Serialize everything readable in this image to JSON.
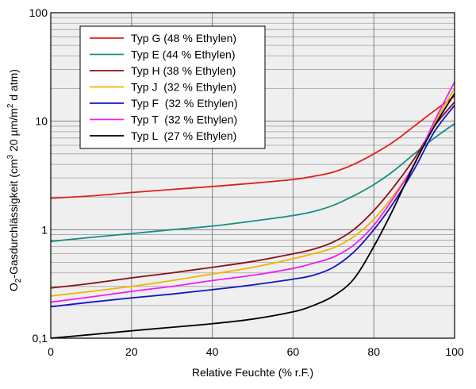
{
  "chart_data": {
    "type": "line",
    "title": "",
    "xlabel": "Relative Feuchte (% r.F.)",
    "ylabel": {
      "part1": "O",
      "sub1": "2",
      "part2": "-Gasdurchlässigkeit (cm",
      "sup1": "3",
      "part3": " 20 µm/m",
      "sup2": "2",
      "part4": " d atm)"
    },
    "xlim": [
      0,
      100
    ],
    "ylim": [
      0.1,
      100
    ],
    "yscale": "log",
    "grid": true,
    "legend_position": "top-left",
    "x_ticks": [
      "0",
      "20",
      "40",
      "60",
      "80",
      "100"
    ],
    "y_ticks": [
      "0,1",
      "1",
      "10",
      "100"
    ],
    "plot_background": "#efefef",
    "series": [
      {
        "name": "Typ G (48 % Ethylen)",
        "color": "#e0201e",
        "x": [
          0,
          10,
          20,
          30,
          40,
          50,
          60,
          65,
          70,
          75,
          80,
          85,
          90,
          95,
          100
        ],
        "y": [
          1.95,
          2.05,
          2.2,
          2.35,
          2.5,
          2.68,
          2.9,
          3.1,
          3.4,
          4.0,
          5.0,
          6.5,
          9.0,
          12.5,
          17.0
        ]
      },
      {
        "name": "Typ E (44 % Ethylen)",
        "color": "#149080",
        "x": [
          0,
          10,
          20,
          30,
          40,
          50,
          60,
          65,
          70,
          75,
          80,
          85,
          90,
          95,
          100
        ],
        "y": [
          0.78,
          0.85,
          0.92,
          1.0,
          1.08,
          1.2,
          1.35,
          1.47,
          1.68,
          2.05,
          2.6,
          3.5,
          5.0,
          7.0,
          9.5
        ]
      },
      {
        "name": "Typ H (38 % Ethylen)",
        "color": "#8b0f18",
        "x": [
          0,
          10,
          20,
          30,
          40,
          50,
          60,
          65,
          70,
          75,
          80,
          85,
          90,
          95,
          100
        ],
        "y": [
          0.29,
          0.32,
          0.36,
          0.4,
          0.45,
          0.51,
          0.6,
          0.66,
          0.77,
          1.0,
          1.5,
          2.5,
          4.5,
          9.0,
          15.0
        ]
      },
      {
        "name": "Typ J  (32 % Ethylen)",
        "color": "#f0b400",
        "x": [
          0,
          10,
          20,
          30,
          40,
          50,
          60,
          65,
          70,
          75,
          80,
          85,
          90,
          95,
          100
        ],
        "y": [
          0.245,
          0.27,
          0.3,
          0.34,
          0.39,
          0.45,
          0.54,
          0.6,
          0.68,
          0.86,
          1.25,
          2.1,
          4.0,
          9.5,
          20.0
        ]
      },
      {
        "name": "Typ F  (32 % Ethylen)",
        "color": "#1414c8",
        "x": [
          0,
          10,
          20,
          30,
          40,
          50,
          60,
          65,
          70,
          75,
          80,
          85,
          90,
          95,
          100
        ],
        "y": [
          0.195,
          0.215,
          0.235,
          0.255,
          0.28,
          0.31,
          0.35,
          0.38,
          0.45,
          0.62,
          1.0,
          1.8,
          3.6,
          8.0,
          14.0
        ]
      },
      {
        "name": "Typ T  (32 % Ethylen)",
        "color": "#f020f0",
        "x": [
          0,
          10,
          20,
          30,
          40,
          50,
          60,
          65,
          70,
          75,
          80,
          85,
          90,
          95,
          100
        ],
        "y": [
          0.215,
          0.24,
          0.27,
          0.3,
          0.34,
          0.38,
          0.44,
          0.49,
          0.56,
          0.72,
          1.1,
          2.0,
          4.0,
          10.0,
          23.0
        ]
      },
      {
        "name": "Typ L  (27 % Ethylen)",
        "color": "#000000",
        "x": [
          0,
          10,
          20,
          30,
          40,
          50,
          60,
          65,
          70,
          75,
          80,
          85,
          90,
          95,
          100
        ],
        "y": [
          0.1,
          0.108,
          0.117,
          0.126,
          0.136,
          0.15,
          0.175,
          0.2,
          0.245,
          0.35,
          0.7,
          1.6,
          4.0,
          9.0,
          18.0
        ]
      }
    ]
  }
}
